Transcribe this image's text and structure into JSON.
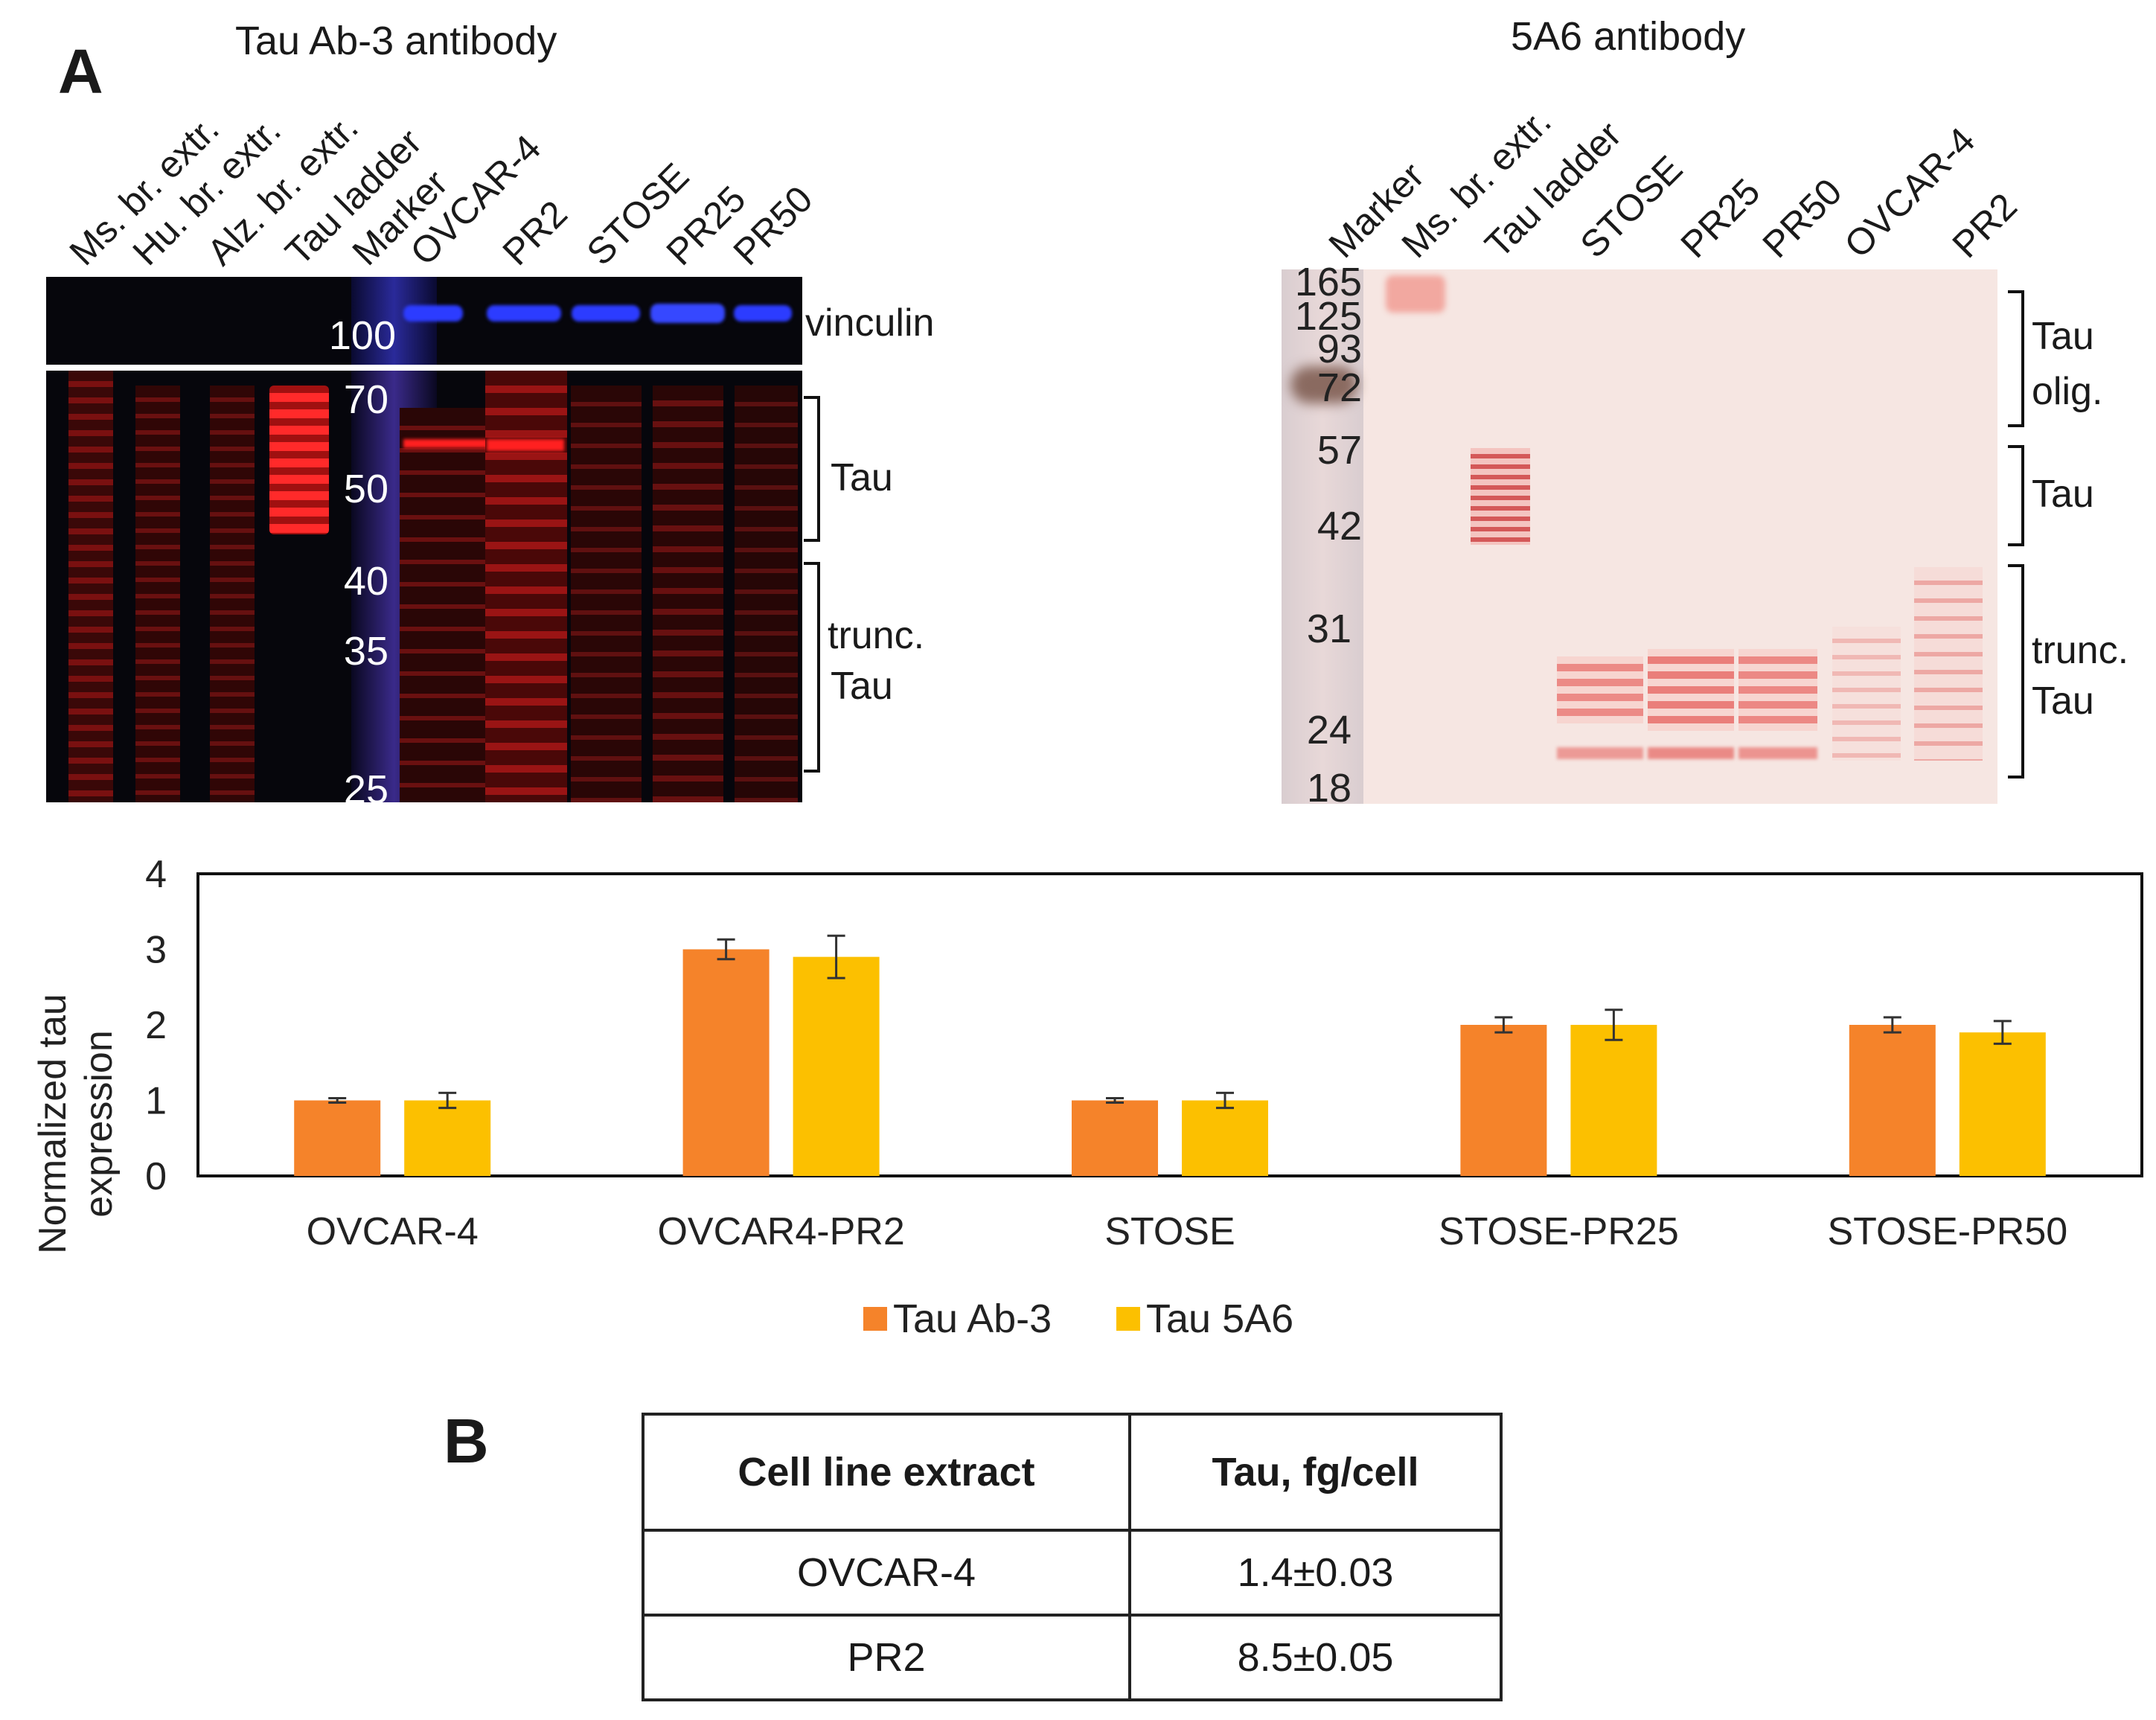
{
  "panel_a_label": "A",
  "panel_b_label": "B",
  "left_blot": {
    "title": "Tau Ab-3 antibody",
    "lanes": [
      "Ms. br. extr.",
      "Hu. br. extr.",
      "Alz. br. extr.",
      "Tau ladder",
      "Marker",
      "OVCAR-4",
      "PR2",
      "STOSE",
      "PR25",
      "PR50"
    ],
    "markers": [
      "100",
      "70",
      "50",
      "40",
      "35",
      "25"
    ],
    "labels": {
      "vinculin": "vinculin",
      "tau": "Tau",
      "trunc_1": "trunc.",
      "trunc_2": "Tau"
    }
  },
  "right_blot": {
    "title": "5A6 antibody",
    "lanes": [
      "Marker",
      "Ms. br. extr.",
      "Tau ladder",
      "STOSE",
      "PR25",
      "PR50",
      "OVCAR-4",
      "PR2"
    ],
    "markers": [
      "165",
      "125",
      "93",
      "72",
      "57",
      "42",
      "31",
      "24",
      "18"
    ],
    "labels": {
      "olig_1": "Tau",
      "olig_2": "olig.",
      "tau": "Tau",
      "trunc_1": "trunc.",
      "trunc_2": "Tau"
    }
  },
  "chart_data": {
    "type": "bar",
    "title": "",
    "ylabel": "Normalized tau expression",
    "ylabel_lines": [
      "Normalized tau",
      "expression"
    ],
    "xlabel": "",
    "ylim": [
      0,
      4
    ],
    "yticks": [
      "0",
      "1",
      "2",
      "3",
      "4"
    ],
    "categories": [
      "OVCAR-4",
      "OVCAR4-PR2",
      "STOSE",
      "STOSE-PR25",
      "STOSE-PR50"
    ],
    "series": [
      {
        "name": "Tau Ab-3",
        "color": "#f5832a",
        "values": [
          1.0,
          3.0,
          1.0,
          2.0,
          2.0
        ],
        "errors": [
          0.03,
          0.13,
          0.03,
          0.1,
          0.1
        ]
      },
      {
        "name": "Tau 5A6",
        "color": "#fcc000",
        "values": [
          1.0,
          2.9,
          1.0,
          2.0,
          1.9
        ],
        "errors": [
          0.1,
          0.28,
          0.1,
          0.2,
          0.15
        ]
      }
    ],
    "legend_position": "bottom"
  },
  "table": {
    "headers": [
      "Cell line extract",
      "Tau, fg/cell"
    ],
    "rows": [
      [
        "OVCAR-4",
        "1.4±0.03"
      ],
      [
        "PR2",
        "8.5±0.05"
      ]
    ]
  }
}
